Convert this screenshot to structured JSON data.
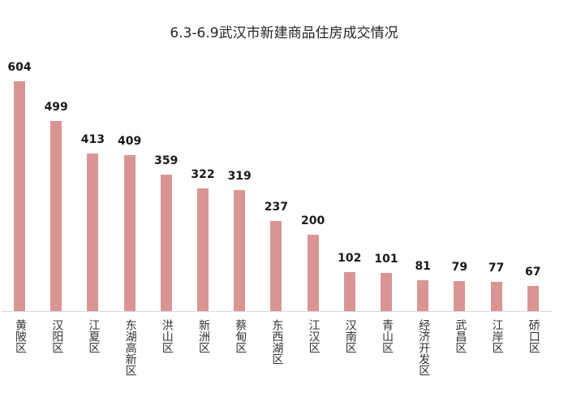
{
  "chart_data": {
    "type": "bar",
    "title": "6.3-6.9武汉市新建商品住房成交情况",
    "xlabel": "",
    "ylabel": "",
    "categories": [
      "黄陂区",
      "汉阳区",
      "江夏区",
      "东湖高新区",
      "洪山区",
      "新洲区",
      "蔡甸区",
      "东西湖区",
      "江汉区",
      "汉南区",
      "青山区",
      "经济开发区",
      "武昌区",
      "江岸区",
      "硚口区"
    ],
    "values": [
      604,
      499,
      413,
      409,
      359,
      322,
      319,
      237,
      200,
      102,
      101,
      81,
      79,
      77,
      67
    ],
    "data_labels": true,
    "grid": false,
    "legend": null,
    "bar_color": "#d99594",
    "ylim": [
      0,
      604
    ]
  }
}
